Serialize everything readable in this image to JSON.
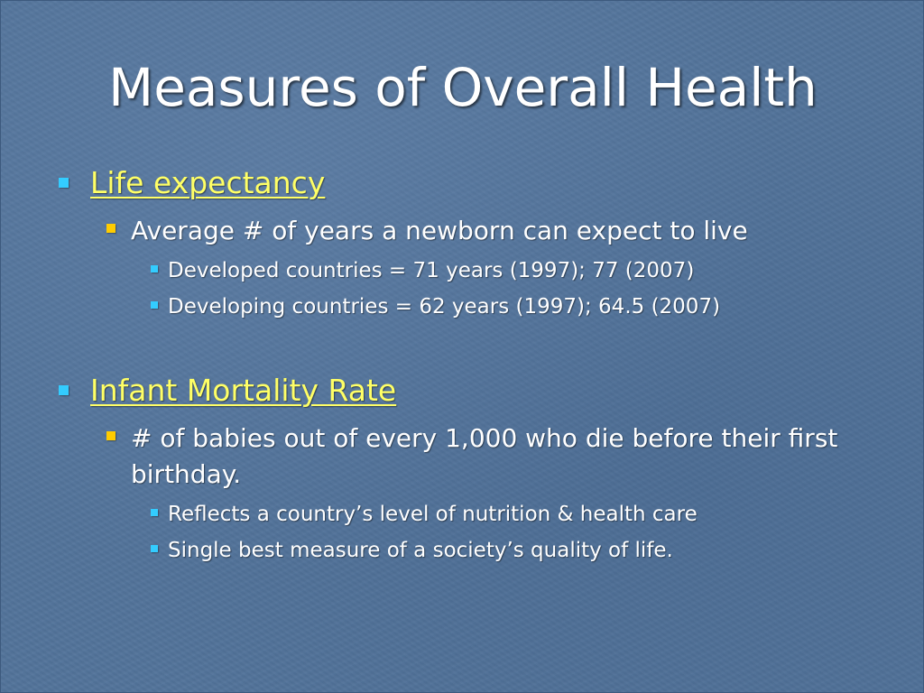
{
  "slide": {
    "title": "Measures of Overall Health",
    "colors": {
      "background": "#52739a",
      "title_text": "#ffffff",
      "heading_link": "#ffff66",
      "bullet_level1": "#33ccff",
      "bullet_level2": "#ffcc00",
      "bullet_level3": "#33ccff"
    },
    "sections": [
      {
        "heading": "Life expectancy",
        "definition": "Average # of years a newborn can expect to live",
        "details": [
          "Developed countries = 71 years (1997); 77 (2007)",
          "Developing countries = 62 years (1997); 64.5 (2007)"
        ]
      },
      {
        "heading": "Infant Mortality Rate",
        "definition": "# of babies out of every 1,000 who die before their first birthday.",
        "details": [
          "Reflects a country’s level of nutrition & health care",
          "Single best measure of a society’s quality of life."
        ]
      }
    ]
  }
}
